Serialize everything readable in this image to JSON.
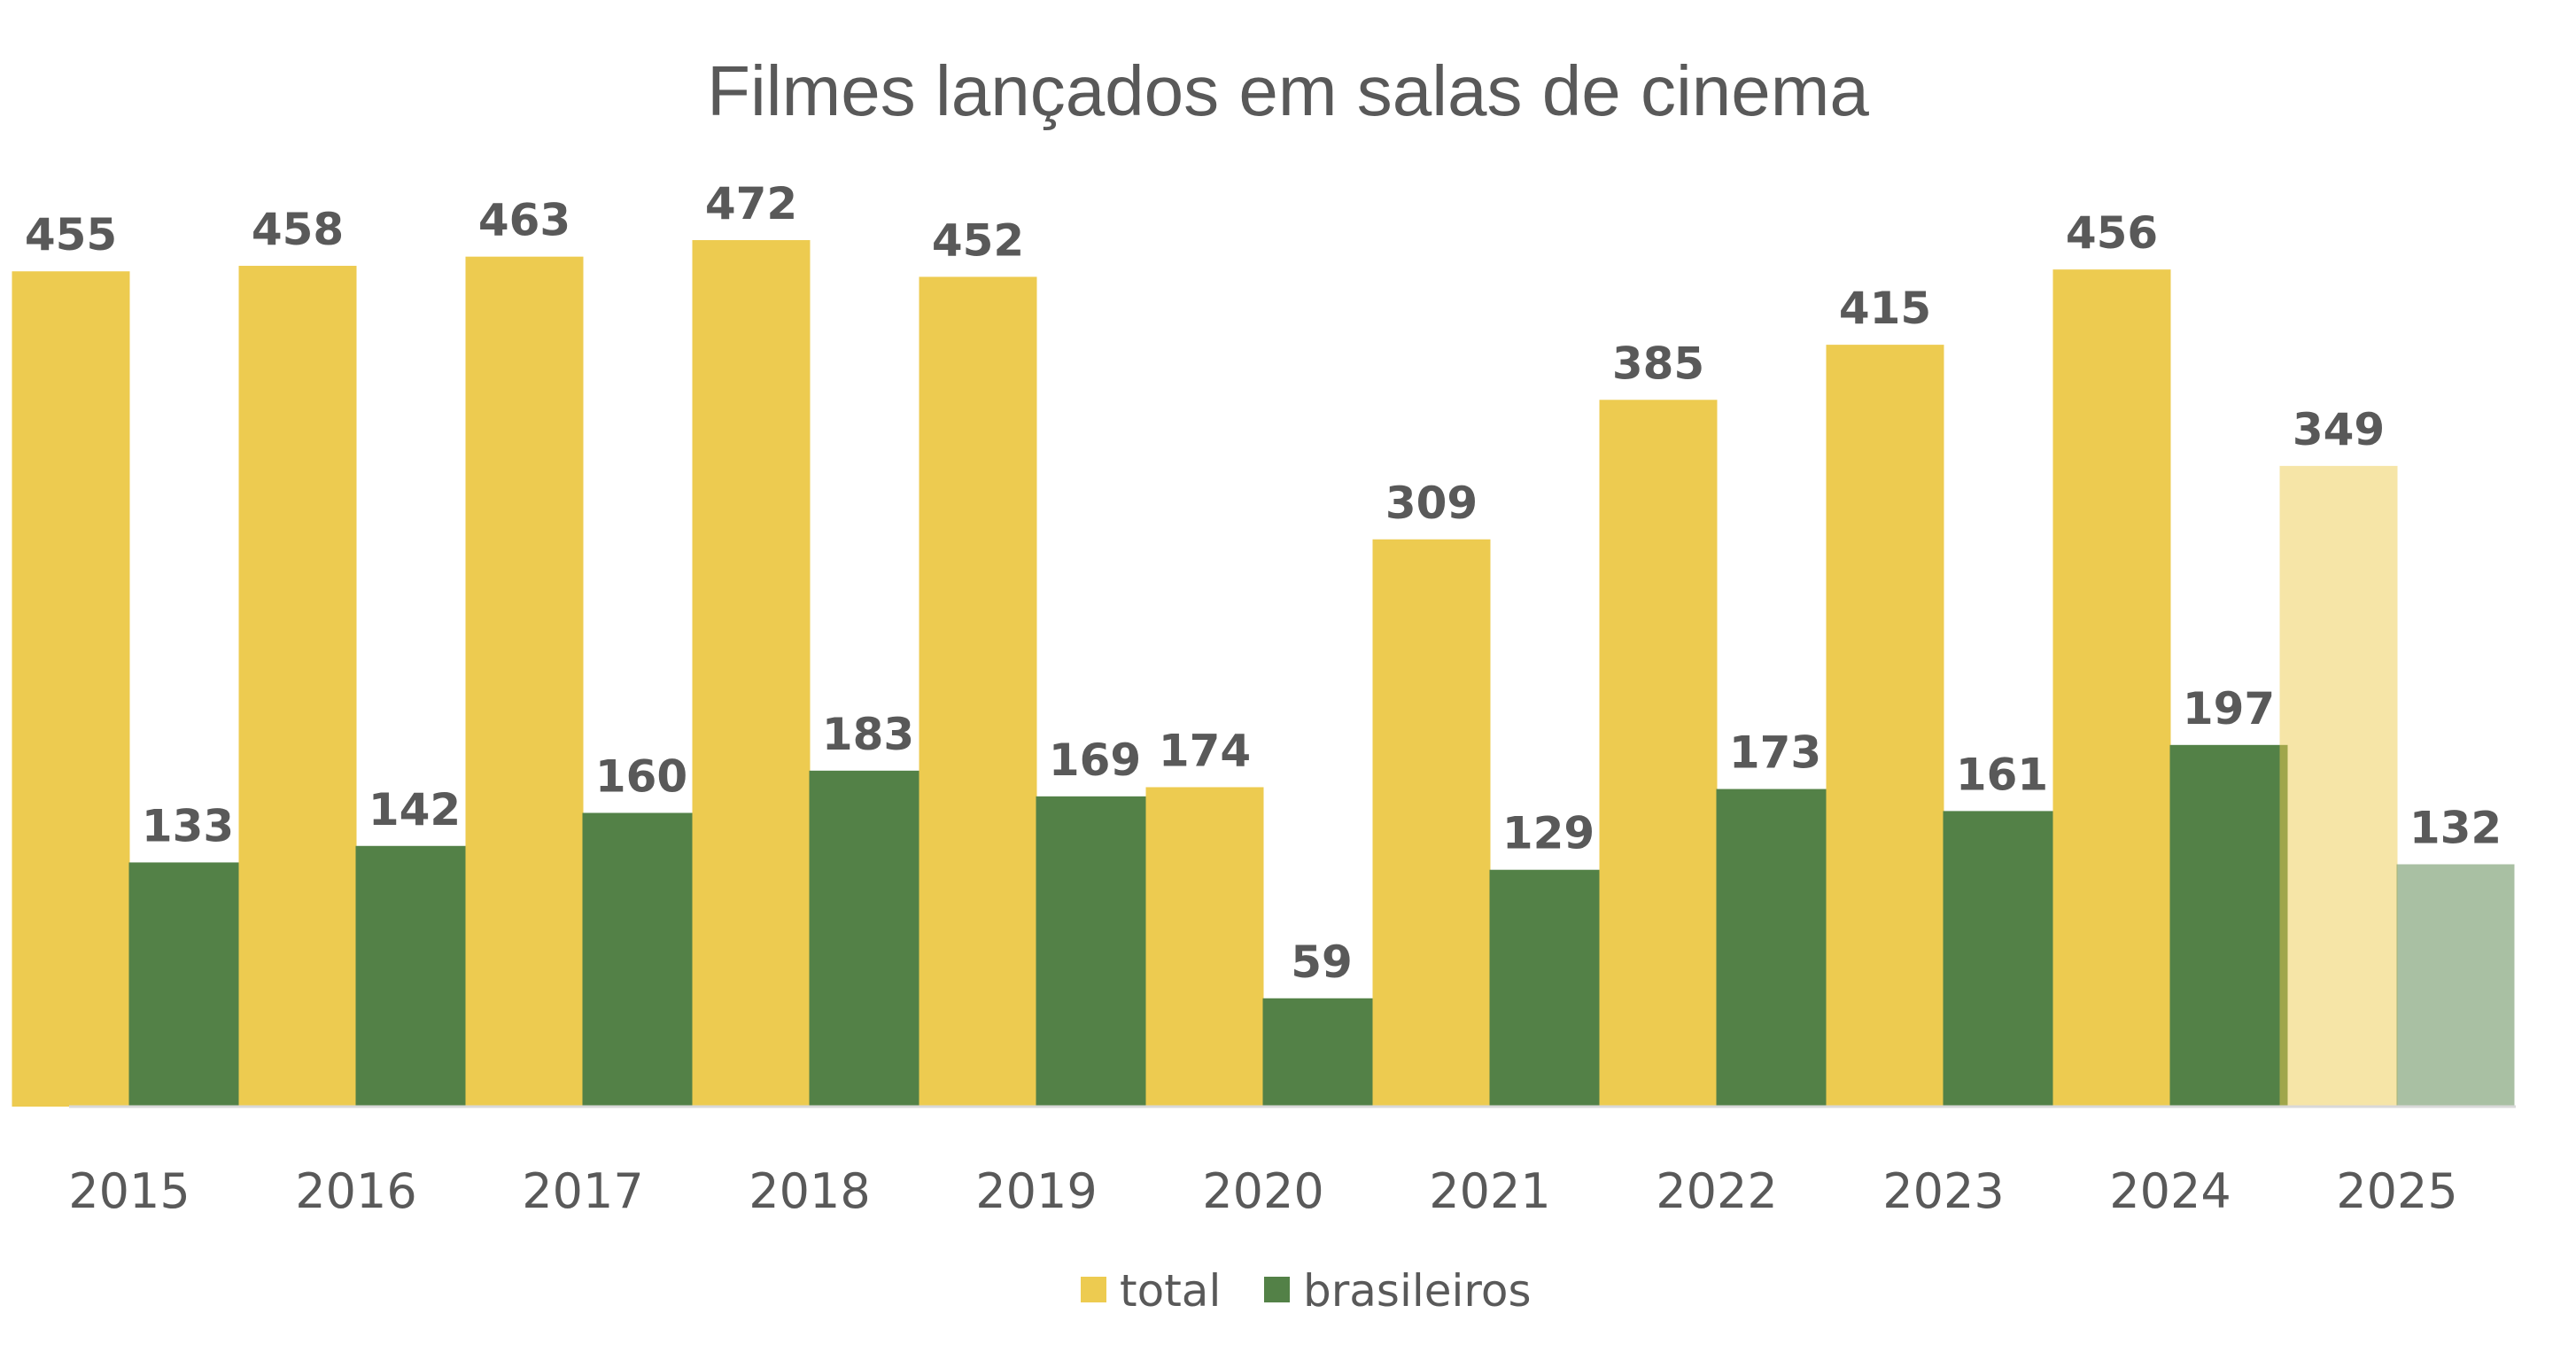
{
  "chart_data": {
    "type": "bar",
    "title": "Filmes lançados em salas de cinema",
    "xlabel": "",
    "ylabel": "",
    "categories": [
      "2015",
      "2016",
      "2017",
      "2018",
      "2019",
      "2020",
      "2021",
      "2022",
      "2023",
      "2024",
      "2025"
    ],
    "series": [
      {
        "name": "total",
        "color": "#EDCB50",
        "values": [
          455,
          458,
          463,
          472,
          452,
          174,
          309,
          385,
          415,
          456,
          349
        ]
      },
      {
        "name": "brasileiros",
        "color": "#538147",
        "values": [
          133,
          142,
          160,
          183,
          169,
          59,
          129,
          173,
          161,
          197,
          132
        ]
      }
    ],
    "highlight_partial_category": "2025",
    "ylim": [
      0,
      500
    ],
    "grid": false,
    "legend_position": "bottom"
  }
}
